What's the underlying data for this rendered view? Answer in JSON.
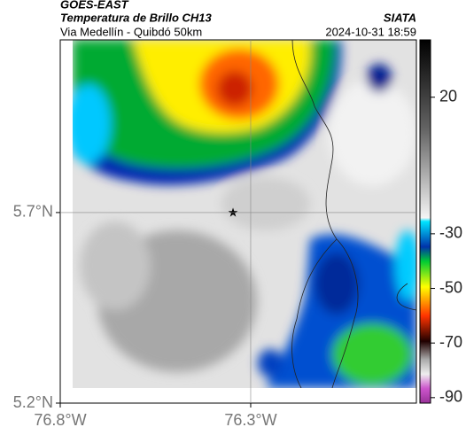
{
  "header": {
    "title": "GOES-EAST",
    "subtitle": "Temperatura de Brillo CH13",
    "route": "Via Medellín - Quibdó 50km",
    "source": "SIATA",
    "timestamp": "2024-10-31 18:59"
  },
  "map": {
    "xlim": [
      -76.8,
      -75.865
    ],
    "ylim": [
      5.2,
      6.153
    ],
    "xticks": [
      {
        "value": -76.8,
        "label": "76.8°W"
      },
      {
        "value": -76.3,
        "label": "76.3°W"
      }
    ],
    "yticks": [
      {
        "value": 5.7,
        "label": "5.7°N"
      },
      {
        "value": 5.2,
        "label": "5.2°N"
      }
    ],
    "colorbar": {
      "clim": [
        -92,
        41
      ],
      "ticks": [
        20,
        -30,
        -50,
        -70,
        -90
      ]
    }
  }
}
